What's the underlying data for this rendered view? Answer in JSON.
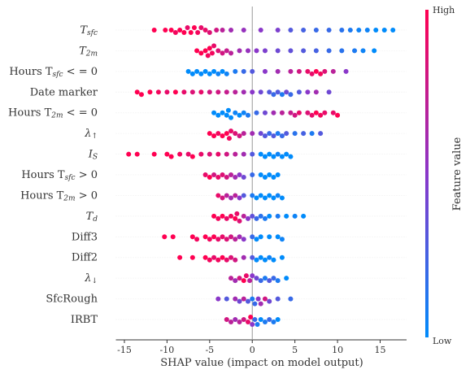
{
  "chart_data": {
    "type": "beeswarm",
    "xlabel": "SHAP value (impact on model output)",
    "xlim": [
      -16,
      18.1
    ],
    "xticks": [
      -15,
      -10,
      -5,
      0,
      5,
      10,
      15
    ],
    "colorbar": {
      "label": "Feature value",
      "high": "High",
      "low": "Low",
      "colors": [
        "#008bfb",
        "#8a37c9",
        "#ff0051"
      ]
    },
    "series": [
      {
        "name": [
          "T",
          "sfc"
        ],
        "values": [
          -11.5,
          -10.2,
          -9.5,
          -9,
          -8.5,
          -8,
          -7.6,
          -7.2,
          -6.8,
          -6.4,
          -6,
          -5.5,
          -5,
          -4.2,
          -3.5,
          -2.5,
          -1,
          1,
          3,
          4.5,
          6,
          7.5,
          9,
          10.5,
          11.5,
          12.5,
          13.5,
          14.5,
          15.5,
          16.5
        ],
        "feature_values": [
          1,
          1,
          1,
          0.95,
          1,
          1,
          0.9,
          1,
          1,
          0.95,
          0.9,
          0.9,
          0.85,
          0.8,
          0.7,
          0.6,
          0.55,
          0.5,
          0.45,
          0.3,
          0.25,
          0.2,
          0.2,
          0.15,
          0.1,
          0.05,
          0.05,
          0,
          0,
          0
        ]
      },
      {
        "name": [
          "T",
          "2m"
        ],
        "values": [
          -6.5,
          -6,
          -5.5,
          -5.2,
          -5,
          -4.7,
          -4.5,
          -4,
          -3.5,
          -3,
          -2.5,
          -1.5,
          -0.5,
          0.5,
          1.5,
          3,
          4.5,
          6,
          7.5,
          9,
          10.5,
          12,
          13,
          14.3
        ],
        "feature_values": [
          1,
          1,
          1,
          0.95,
          1,
          0.95,
          0.9,
          0.85,
          0.8,
          0.75,
          0.7,
          0.6,
          0.55,
          0.5,
          0.45,
          0.4,
          0.35,
          0.3,
          0.25,
          0.2,
          0.15,
          0.1,
          0.05,
          0
        ]
      },
      {
        "name": [
          "Hours T",
          "sfc",
          " < = 0"
        ],
        "values": [
          -7.5,
          -7,
          -6.5,
          -6,
          -5.5,
          -5,
          -4.5,
          -4,
          -3.5,
          -3,
          -2,
          -1,
          0,
          1.5,
          3,
          4.5,
          5.5,
          6.5,
          7,
          7.5,
          8,
          8.5,
          9.5,
          11
        ],
        "feature_values": [
          0,
          0,
          0,
          0,
          0,
          0,
          0,
          0.05,
          0,
          0.05,
          0.1,
          0.2,
          0.3,
          0.5,
          0.6,
          0.7,
          0.8,
          0.9,
          0.9,
          1,
          0.95,
          0.85,
          0.7,
          0.5
        ]
      },
      {
        "name": [
          "Date marker"
        ],
        "values": [
          -13.5,
          -13,
          -12,
          -11,
          -10,
          -9,
          -8,
          -7,
          -6,
          -5,
          -4,
          -3,
          -2,
          -1,
          0,
          1,
          2,
          2.5,
          3,
          3.5,
          4,
          4.5,
          5.5,
          6.5,
          7.5,
          9
        ],
        "feature_values": [
          1,
          1,
          1,
          0.95,
          0.9,
          1,
          0.9,
          0.85,
          0.9,
          0.8,
          0.8,
          0.75,
          0.7,
          0.6,
          0.5,
          0.4,
          0.3,
          0.2,
          0.3,
          0.1,
          0.4,
          0.2,
          0.3,
          0.5,
          0.6,
          0.4
        ]
      },
      {
        "name": [
          "Hours T",
          "2m",
          " < = 0"
        ],
        "values": [
          -4.5,
          -4,
          -3.5,
          -3,
          -2.8,
          -2.5,
          -2,
          -1.5,
          -1,
          -0.5,
          0.5,
          1.5,
          2.5,
          3.5,
          4.5,
          5,
          5.5,
          6.5,
          7,
          7.5,
          8,
          8.5,
          9.5,
          10
        ],
        "feature_values": [
          0,
          0,
          0,
          0,
          0,
          0,
          0.05,
          0,
          0.05,
          0.1,
          0.2,
          0.4,
          0.6,
          0.7,
          0.75,
          0.8,
          0.9,
          0.85,
          0.9,
          1,
          0.95,
          0.9,
          0.9,
          1
        ]
      },
      {
        "name": [
          "λ",
          "↑"
        ],
        "values": [
          -5,
          -4.5,
          -4,
          -3.5,
          -3,
          -2.7,
          -2.5,
          -2,
          -1.5,
          -1,
          0,
          1,
          1.5,
          2,
          2.5,
          3,
          3.5,
          4,
          5,
          6,
          7,
          8
        ],
        "feature_values": [
          1,
          1,
          0.95,
          1,
          1,
          0.95,
          0.9,
          0.85,
          0.8,
          0.7,
          0.6,
          0.4,
          0.3,
          0.2,
          0.3,
          0.1,
          0.2,
          0.3,
          0.15,
          0.25,
          0.1,
          0.3
        ]
      },
      {
        "name": [
          "I",
          "S"
        ],
        "values": [
          -14.5,
          -13.5,
          -11.5,
          -10,
          -9.5,
          -8.5,
          -7.5,
          -7,
          -6,
          -5,
          -4,
          -3,
          -2,
          -1,
          0,
          1,
          1.5,
          2,
          2.5,
          3,
          3.5,
          4,
          4.5
        ],
        "feature_values": [
          1,
          1,
          1,
          1,
          1,
          0.95,
          0.9,
          1,
          0.9,
          0.85,
          0.9,
          0.8,
          0.7,
          0.6,
          0.3,
          0,
          0,
          0,
          0,
          0.05,
          0,
          0,
          0
        ]
      },
      {
        "name": [
          "Hours T",
          "sfc",
          " > 0"
        ],
        "values": [
          -5.5,
          -5,
          -4.5,
          -4,
          -3.5,
          -3,
          -2.5,
          -2,
          -1.5,
          -1,
          0,
          1,
          1.5,
          2,
          2.5,
          3
        ],
        "feature_values": [
          0.9,
          1,
          0.8,
          0.9,
          0.85,
          0.8,
          0.7,
          0.6,
          0.5,
          0.4,
          0.2,
          0,
          0,
          0,
          0,
          0
        ]
      },
      {
        "name": [
          "Hours T",
          "2m",
          " > 0"
        ],
        "values": [
          -4,
          -3.5,
          -3,
          -2.5,
          -2,
          -1.5,
          -1,
          0,
          0.5,
          1,
          1.5,
          2,
          2.5,
          3,
          3.5
        ],
        "feature_values": [
          0.9,
          0.8,
          0.7,
          0.6,
          0.7,
          0.5,
          0.3,
          0.1,
          0,
          0,
          0,
          0,
          0,
          0.05,
          0
        ]
      },
      {
        "name": [
          "T",
          "d"
        ],
        "values": [
          -4.5,
          -4,
          -3.5,
          -3,
          -2.5,
          -2,
          -1.8,
          -1.5,
          -1,
          -0.5,
          0,
          0.5,
          1,
          1.5,
          2,
          3,
          4,
          5,
          6
        ],
        "feature_values": [
          1,
          0.95,
          1,
          0.9,
          0.95,
          1,
          0.9,
          0.85,
          0.7,
          0.5,
          0.35,
          0.2,
          0.15,
          0.1,
          0,
          0.1,
          0,
          0.05,
          0
        ]
      },
      {
        "name": [
          "Diff3"
        ],
        "values": [
          -10.3,
          -9.3,
          -7,
          -6.5,
          -5.5,
          -5,
          -4.5,
          -4,
          -3.5,
          -3,
          -2.5,
          -2,
          -1.5,
          -1,
          0,
          0.5,
          1,
          2,
          3,
          3.5
        ],
        "feature_values": [
          1,
          1,
          1,
          0.95,
          1,
          0.95,
          1,
          0.9,
          0.9,
          0.85,
          0.8,
          0.7,
          0.6,
          0.5,
          0.2,
          0,
          0,
          0,
          0,
          0.05
        ]
      },
      {
        "name": [
          "Diff2"
        ],
        "values": [
          -8.5,
          -7,
          -5.5,
          -5,
          -4.5,
          -4,
          -3.5,
          -3,
          -2.5,
          -2,
          -1,
          0,
          0.5,
          1,
          1.5,
          2,
          2.5,
          3.5
        ],
        "feature_values": [
          1,
          1,
          1,
          0.95,
          0.9,
          0.95,
          1,
          0.9,
          0.85,
          0.8,
          0.6,
          0.3,
          0,
          0,
          0,
          0.05,
          0,
          0
        ]
      },
      {
        "name": [
          "λ",
          "↓"
        ],
        "values": [
          -2.5,
          -2,
          -1.5,
          -1,
          -0.7,
          -0.3,
          0,
          0.5,
          1,
          1.5,
          2,
          2.5,
          3,
          4
        ],
        "feature_values": [
          0.7,
          0.6,
          0.8,
          1,
          0.9,
          0.7,
          0.5,
          0.4,
          0.2,
          0.1,
          0.3,
          0.2,
          0.1,
          0
        ]
      },
      {
        "name": [
          "SfcRough"
        ],
        "values": [
          -4,
          -3,
          -2,
          -1.5,
          -1,
          -0.5,
          0,
          0.3,
          0.7,
          1,
          1.5,
          2,
          3,
          4.5
        ],
        "feature_values": [
          0.5,
          0.3,
          0.6,
          0.4,
          0.7,
          0.3,
          0.1,
          0.2,
          0.5,
          0.6,
          0.8,
          0.4,
          0.3,
          0.2
        ]
      },
      {
        "name": [
          "IRBT"
        ],
        "values": [
          -3,
          -2.5,
          -2,
          -1.5,
          -1,
          -0.5,
          -0.2,
          0,
          0.3,
          0.6,
          1,
          1.5,
          2,
          2.5,
          3
        ],
        "feature_values": [
          0.8,
          0.7,
          0.6,
          0.7,
          0.8,
          0.9,
          1,
          0.5,
          0.2,
          0.1,
          0,
          0.1,
          0.2,
          0.1,
          0
        ]
      }
    ]
  }
}
